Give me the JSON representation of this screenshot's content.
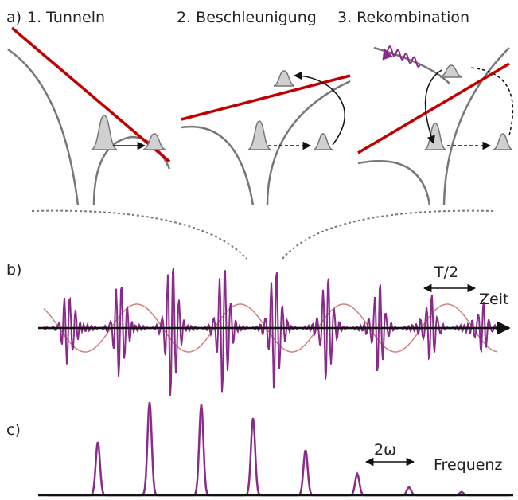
{
  "panel_a": {
    "label": "a)",
    "steps": [
      "1. Tunneln",
      "2. Beschleunigung",
      "3. Rekombination"
    ]
  },
  "panel_b": {
    "label": "b)",
    "period_label": "T/2",
    "axis_label": "Zeit"
  },
  "panel_c": {
    "label": "c)",
    "spacing_label": "2ω",
    "axis_label": "Frequenz"
  }
}
